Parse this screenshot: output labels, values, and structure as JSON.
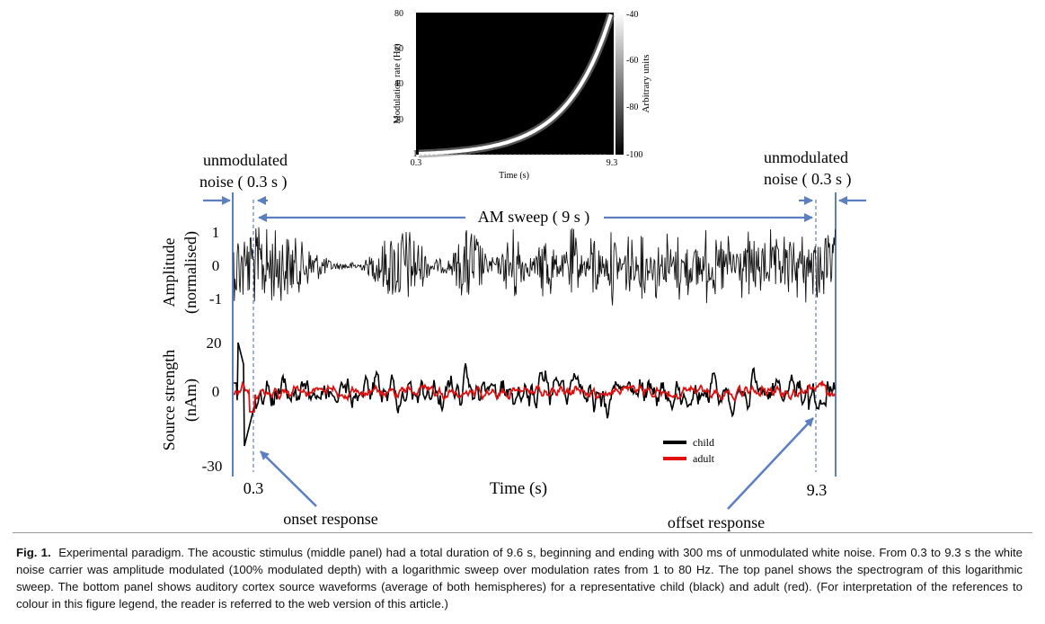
{
  "spectrogram": {
    "ylabel": "Modulation rate (Hz)",
    "xlabel": "Time (s)",
    "yticks": [
      "80",
      "60",
      "40",
      "20",
      "1"
    ],
    "xticks": [
      "0.3",
      "9.3"
    ],
    "colorbar_label": "Arbitrary units",
    "colorbar_ticks": [
      "-40",
      "-60",
      "-80",
      "-100"
    ]
  },
  "annotations": {
    "unmod_left_1": "unmodulated",
    "unmod_left_2": "noise ( 0.3 s )",
    "unmod_right_1": "unmodulated",
    "unmod_right_2": "noise ( 0.3 s )",
    "am_sweep": "AM sweep ( 9 s )",
    "onset": "onset response",
    "offset": "offset response",
    "time_axis": "Time (s)",
    "t_start": "0.3",
    "t_end": "9.3"
  },
  "amplitude_panel": {
    "ylabel_1": "Amplitude",
    "ylabel_2": "(normalised)",
    "yticks": [
      "1",
      "0",
      "-1"
    ]
  },
  "source_panel": {
    "ylabel_1": "Source strength",
    "ylabel_2": "(nAm)",
    "yticks": [
      "20",
      "0",
      "-30"
    ]
  },
  "legend": {
    "child": "child",
    "adult": "adult"
  },
  "colors": {
    "child": "#000000",
    "adult": "#e01010",
    "arrow": "#5b7fbf"
  },
  "caption": {
    "label": "Fig. 1.",
    "text": "Experimental paradigm. The acoustic stimulus (middle panel) had a total duration of 9.6 s, beginning and ending with 300 ms of unmodulated white noise. From 0.3 to 9.3 s the white noise carrier was amplitude modulated (100% modulated depth) with a logarithmic sweep over modulation rates from 1 to 80 Hz. The top panel shows the spectrogram of this logarithmic sweep. The bottom panel shows auditory cortex source waveforms (average of both hemispheres) for a representative child (black) and adult (red). (For interpretation of the references to colour in this figure legend, the reader is referred to the web version of this article.)"
  }
}
